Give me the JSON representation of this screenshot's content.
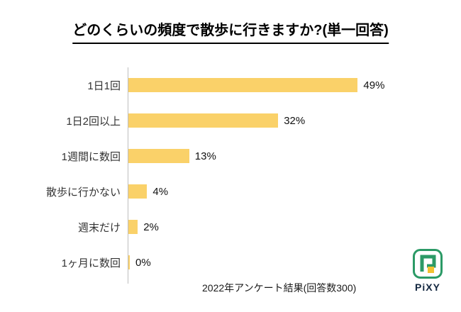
{
  "title": "どのくらいの頻度で散歩に行きますか?(単一回答)",
  "footer": {
    "note": "2022年アンケート結果(回答数300)"
  },
  "logo": {
    "text": "PiXY",
    "green": "#2b9a66",
    "yellow": "#f2c230",
    "navy": "#12263f"
  },
  "chart_data": {
    "type": "bar",
    "orientation": "horizontal",
    "title": "どのくらいの頻度で散歩に行きますか?(単一回答)",
    "categories": [
      "1日1回",
      "1日2回以上",
      "1週間に数回",
      "散歩に行かない",
      "週末だけ",
      "1ヶ月に数回"
    ],
    "values": [
      49,
      32,
      13,
      4,
      2,
      0
    ],
    "value_labels": [
      "49%",
      "32%",
      "13%",
      "4%",
      "2%",
      "0%"
    ],
    "unit": "%",
    "xlim": [
      0,
      55
    ],
    "grid": false,
    "legend": false,
    "bar_color": "#fad169",
    "axis_color": "#bfbfbf",
    "source_note": "2022年アンケート結果(回答数300)"
  }
}
